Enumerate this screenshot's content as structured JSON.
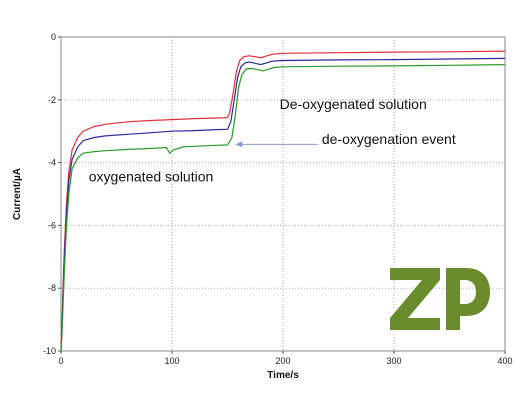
{
  "chart_data": {
    "type": "line",
    "title": "",
    "xlabel": "Time/s",
    "ylabel": "Current/µA",
    "xlim": [
      0,
      400
    ],
    "ylim": [
      -10,
      0
    ],
    "x_ticks": [
      0,
      100,
      200,
      300,
      400
    ],
    "y_ticks": [
      0,
      -2,
      -4,
      -6,
      -8,
      -10
    ],
    "x_tick_labels": [
      "0",
      "100",
      "200",
      "300",
      "400"
    ],
    "y_tick_labels": [
      "0",
      "-2",
      "-4",
      "-6",
      "-8",
      "-10"
    ],
    "grid": true,
    "legend": "none",
    "series": [
      {
        "color": "#e0303a",
        "points": [
          [
            0,
            -10
          ],
          [
            1,
            -9.0
          ],
          [
            2,
            -7.8
          ],
          [
            3,
            -6.8
          ],
          [
            5,
            -5.3
          ],
          [
            7,
            -4.3
          ],
          [
            10,
            -3.6
          ],
          [
            15,
            -3.2
          ],
          [
            20,
            -3.0
          ],
          [
            30,
            -2.85
          ],
          [
            40,
            -2.78
          ],
          [
            60,
            -2.7
          ],
          [
            80,
            -2.66
          ],
          [
            100,
            -2.63
          ],
          [
            120,
            -2.6
          ],
          [
            140,
            -2.58
          ],
          [
            150,
            -2.57
          ],
          [
            152,
            -2.4
          ],
          [
            155,
            -1.8
          ],
          [
            158,
            -1.1
          ],
          [
            161,
            -0.75
          ],
          [
            165,
            -0.62
          ],
          [
            170,
            -0.6
          ],
          [
            180,
            -0.66
          ],
          [
            190,
            -0.55
          ],
          [
            200,
            -0.52
          ],
          [
            250,
            -0.5
          ],
          [
            300,
            -0.48
          ],
          [
            350,
            -0.47
          ],
          [
            400,
            -0.45
          ]
        ]
      },
      {
        "color": "#2a2a9c",
        "points": [
          [
            0,
            -10
          ],
          [
            1,
            -9.2
          ],
          [
            2,
            -8.1
          ],
          [
            3,
            -7.1
          ],
          [
            5,
            -5.6
          ],
          [
            7,
            -4.6
          ],
          [
            10,
            -3.9
          ],
          [
            15,
            -3.5
          ],
          [
            20,
            -3.3
          ],
          [
            30,
            -3.2
          ],
          [
            40,
            -3.15
          ],
          [
            60,
            -3.1
          ],
          [
            80,
            -3.05
          ],
          [
            100,
            -3.0
          ],
          [
            120,
            -2.98
          ],
          [
            140,
            -2.95
          ],
          [
            150,
            -2.94
          ],
          [
            153,
            -2.7
          ],
          [
            156,
            -2.0
          ],
          [
            159,
            -1.3
          ],
          [
            162,
            -0.95
          ],
          [
            166,
            -0.82
          ],
          [
            170,
            -0.8
          ],
          [
            180,
            -0.88
          ],
          [
            190,
            -0.77
          ],
          [
            200,
            -0.75
          ],
          [
            250,
            -0.73
          ],
          [
            300,
            -0.72
          ],
          [
            350,
            -0.7
          ],
          [
            400,
            -0.68
          ]
        ]
      },
      {
        "color": "#2a9a2a",
        "points": [
          [
            0,
            -10
          ],
          [
            1,
            -9.4
          ],
          [
            2,
            -8.4
          ],
          [
            3,
            -7.5
          ],
          [
            5,
            -6.0
          ],
          [
            7,
            -5.0
          ],
          [
            10,
            -4.2
          ],
          [
            15,
            -3.85
          ],
          [
            20,
            -3.7
          ],
          [
            30,
            -3.65
          ],
          [
            40,
            -3.62
          ],
          [
            60,
            -3.58
          ],
          [
            80,
            -3.55
          ],
          [
            95,
            -3.52
          ],
          [
            98,
            -3.7
          ],
          [
            101,
            -3.6
          ],
          [
            110,
            -3.5
          ],
          [
            120,
            -3.48
          ],
          [
            140,
            -3.45
          ],
          [
            150,
            -3.44
          ],
          [
            154,
            -3.2
          ],
          [
            157,
            -2.5
          ],
          [
            160,
            -1.6
          ],
          [
            163,
            -1.2
          ],
          [
            167,
            -1.02
          ],
          [
            172,
            -1.0
          ],
          [
            182,
            -1.08
          ],
          [
            192,
            -0.97
          ],
          [
            200,
            -0.95
          ],
          [
            250,
            -0.93
          ],
          [
            300,
            -0.92
          ],
          [
            350,
            -0.9
          ],
          [
            400,
            -0.88
          ]
        ]
      }
    ],
    "annotations": [
      {
        "text": "De-oxygenated solution",
        "x": 197,
        "y": -2.3
      },
      {
        "text": "de-oxygenation event",
        "x": 235,
        "y": -3.4
      },
      {
        "text": "oxygenated solution",
        "x": 25,
        "y": -4.6
      }
    ],
    "arrow": {
      "from": [
        235,
        -3.42
      ],
      "to": [
        157,
        -3.42
      ],
      "color": "#8899cc"
    }
  },
  "logo": {
    "text": "ZP",
    "color": "#6b8c2c"
  }
}
